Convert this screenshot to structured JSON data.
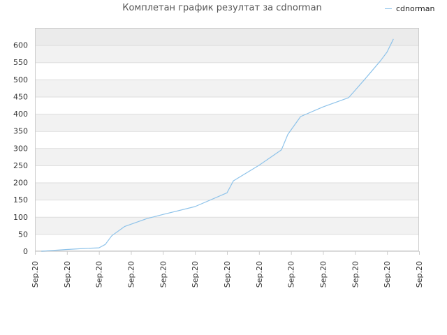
{
  "title": "Комплетан график резултат за cdnorman",
  "legend": {
    "label": "cdnorman"
  },
  "colors": {
    "line": "#8ec3ea",
    "band_a": "#f2f2f2",
    "band_b": "#ffffff",
    "top_band": "#ebebeb",
    "grid": "#dddddd",
    "axis": "#cccccc"
  },
  "chart_data": {
    "type": "line",
    "title": "Комплетан график резултат за cdnorman",
    "xlabel": "",
    "ylabel": "",
    "ylim": [
      0,
      650
    ],
    "yticks": [
      0,
      50,
      100,
      150,
      200,
      250,
      300,
      350,
      400,
      450,
      500,
      550,
      600
    ],
    "xticks": [
      "Sep.20",
      "Sep.20",
      "Sep.20",
      "Sep.20",
      "Sep.20",
      "Sep.20",
      "Sep.20",
      "Sep.20",
      "Sep.20",
      "Sep.20",
      "Sep.20",
      "Sep.20",
      "Sep.20"
    ],
    "grid": true,
    "legend_position": "top-right",
    "series": [
      {
        "name": "cdnorman",
        "x": [
          0.2,
          0.5,
          1.0,
          1.5,
          2.0,
          2.2,
          2.4,
          2.8,
          3.5,
          4.0,
          5.0,
          6.0,
          6.2,
          7.0,
          7.7,
          7.9,
          8.3,
          9.0,
          9.8,
          10.3,
          10.8,
          11.0,
          11.2
        ],
        "y": [
          0,
          2,
          5,
          8,
          10,
          20,
          45,
          72,
          95,
          107,
          130,
          170,
          205,
          250,
          295,
          340,
          392,
          420,
          447,
          500,
          555,
          580,
          618
        ]
      }
    ]
  }
}
